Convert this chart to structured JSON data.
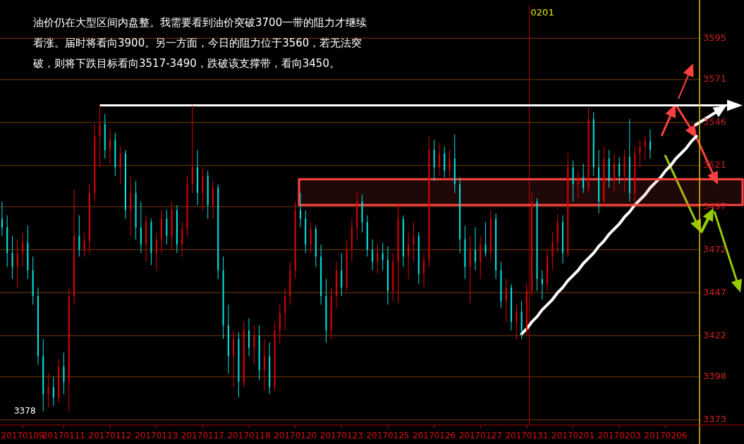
{
  "chart_data": {
    "type": "candlestick",
    "categories": [
      null,
      null,
      null,
      null,
      "20170109",
      null,
      null,
      null,
      null,
      null,
      null,
      null,
      "20170111",
      null,
      null,
      null,
      null,
      null,
      null,
      null,
      null,
      "20170112",
      null,
      null,
      null,
      null,
      null,
      null,
      null,
      null,
      "20170113",
      null,
      null,
      null,
      null,
      null,
      null,
      null,
      null,
      "20170117",
      null,
      null,
      null,
      null,
      null,
      null,
      null,
      null,
      "20170118",
      null,
      null,
      null,
      null,
      null,
      null,
      null,
      null,
      "20170120",
      null,
      null,
      null,
      null,
      null,
      null,
      null,
      null,
      "20170123",
      null,
      null,
      null,
      null,
      null,
      null,
      null,
      null,
      "20170125",
      null,
      null,
      null,
      null,
      null,
      null,
      null,
      null,
      "20170126",
      null,
      null,
      null,
      null,
      null,
      null,
      null,
      null,
      "20170127",
      null,
      null,
      null,
      null,
      null,
      null,
      null,
      null,
      "20170131",
      null,
      null,
      null,
      null,
      null,
      null,
      null,
      null,
      "20170201",
      null,
      null,
      null,
      null,
      null,
      null,
      null,
      null,
      "20170203",
      null,
      null,
      null,
      null,
      null,
      null,
      null,
      null,
      "20170206",
      null,
      null,
      null,
      null,
      null,
      null
    ],
    "ohlc": [
      [
        3490,
        3500,
        3480,
        3485
      ],
      [
        3485,
        3492,
        3462,
        3470
      ],
      [
        3470,
        3480,
        3455,
        3462
      ],
      [
        3462,
        3478,
        3450,
        3470
      ],
      [
        3470,
        3482,
        3462,
        3476
      ],
      [
        3476,
        3486,
        3455,
        3460
      ],
      [
        3460,
        3468,
        3440,
        3445
      ],
      [
        3445,
        3450,
        3405,
        3410
      ],
      [
        3410,
        3420,
        3378,
        3388
      ],
      [
        3388,
        3400,
        3380,
        3392
      ],
      [
        3392,
        3398,
        3381,
        3386
      ],
      [
        3386,
        3408,
        3383,
        3404
      ],
      [
        3404,
        3412,
        3388,
        3395
      ],
      [
        3395,
        3450,
        3378,
        3445
      ],
      [
        3445,
        3507,
        3440,
        3480
      ],
      [
        3480,
        3492,
        3468,
        3472
      ],
      [
        3472,
        3482,
        3468,
        3477
      ],
      [
        3477,
        3510,
        3470,
        3505
      ],
      [
        3505,
        3545,
        3500,
        3538
      ],
      [
        3538,
        3556,
        3520,
        3545
      ],
      [
        3545,
        3551,
        3525,
        3530
      ],
      [
        3530,
        3542,
        3522,
        3536
      ],
      [
        3536,
        3540,
        3515,
        3520
      ],
      [
        3520,
        3532,
        3510,
        3528
      ],
      [
        3528,
        3530,
        3490,
        3495
      ],
      [
        3495,
        3515,
        3480,
        3505
      ],
      [
        3505,
        3512,
        3478,
        3485
      ],
      [
        3485,
        3500,
        3470,
        3475
      ],
      [
        3475,
        3492,
        3465,
        3488
      ],
      [
        3488,
        3490,
        3463,
        3470
      ],
      [
        3470,
        3482,
        3460,
        3478
      ],
      [
        3478,
        3495,
        3470,
        3490
      ],
      [
        3490,
        3495,
        3475,
        3480
      ],
      [
        3480,
        3500,
        3472,
        3495
      ],
      [
        3495,
        3498,
        3470,
        3475
      ],
      [
        3475,
        3488,
        3468,
        3484
      ],
      [
        3484,
        3515,
        3480,
        3510
      ],
      [
        3510,
        3556,
        3505,
        3520
      ],
      [
        3520,
        3530,
        3498,
        3505
      ],
      [
        3505,
        3520,
        3495,
        3515
      ],
      [
        3515,
        3518,
        3490,
        3498
      ],
      [
        3498,
        3512,
        3490,
        3508
      ],
      [
        3508,
        3510,
        3455,
        3460
      ],
      [
        3460,
        3468,
        3420,
        3428
      ],
      [
        3428,
        3440,
        3400,
        3410
      ],
      [
        3410,
        3425,
        3392,
        3420
      ],
      [
        3420,
        3424,
        3386,
        3395
      ],
      [
        3395,
        3430,
        3392,
        3425
      ],
      [
        3425,
        3432,
        3410,
        3415
      ],
      [
        3415,
        3428,
        3405,
        3422
      ],
      [
        3422,
        3428,
        3396,
        3402
      ],
      [
        3402,
        3420,
        3390,
        3410
      ],
      [
        3410,
        3418,
        3388,
        3392
      ],
      [
        3392,
        3430,
        3390,
        3425
      ],
      [
        3425,
        3440,
        3418,
        3435
      ],
      [
        3435,
        3450,
        3425,
        3445
      ],
      [
        3445,
        3465,
        3440,
        3460
      ],
      [
        3460,
        3500,
        3455,
        3495
      ],
      [
        3495,
        3505,
        3485,
        3490
      ],
      [
        3490,
        3495,
        3470,
        3475
      ],
      [
        3475,
        3488,
        3470,
        3484
      ],
      [
        3484,
        3486,
        3462,
        3468
      ],
      [
        3468,
        3475,
        3440,
        3445
      ],
      [
        3445,
        3455,
        3418,
        3425
      ],
      [
        3425,
        3450,
        3420,
        3445
      ],
      [
        3445,
        3465,
        3438,
        3460
      ],
      [
        3460,
        3470,
        3445,
        3450
      ],
      [
        3450,
        3478,
        3448,
        3472
      ],
      [
        3472,
        3490,
        3465,
        3485
      ],
      [
        3485,
        3505,
        3478,
        3500
      ],
      [
        3500,
        3504,
        3482,
        3488
      ],
      [
        3488,
        3492,
        3468,
        3472
      ],
      [
        3472,
        3478,
        3460,
        3465
      ],
      [
        3465,
        3475,
        3458,
        3470
      ],
      [
        3470,
        3476,
        3460,
        3466
      ],
      [
        3466,
        3474,
        3440,
        3448
      ],
      [
        3448,
        3470,
        3442,
        3465
      ],
      [
        3465,
        3499,
        3441,
        3490
      ],
      [
        3490,
        3492,
        3462,
        3468
      ],
      [
        3468,
        3482,
        3455,
        3475
      ],
      [
        3475,
        3488,
        3465,
        3480
      ],
      [
        3480,
        3482,
        3452,
        3458
      ],
      [
        3458,
        3470,
        3450,
        3466
      ],
      [
        3466,
        3538,
        3462,
        3530
      ],
      [
        3530,
        3536,
        3512,
        3520
      ],
      [
        3520,
        3534,
        3515,
        3528
      ],
      [
        3528,
        3532,
        3514,
        3518
      ],
      [
        3518,
        3530,
        3512,
        3525
      ],
      [
        3525,
        3539,
        3505,
        3510
      ],
      [
        3510,
        3514,
        3470,
        3478
      ],
      [
        3478,
        3486,
        3455,
        3462
      ],
      [
        3462,
        3480,
        3441,
        3472
      ],
      [
        3472,
        3485,
        3460,
        3465
      ],
      [
        3465,
        3480,
        3455,
        3475
      ],
      [
        3475,
        3488,
        3468,
        3470
      ],
      [
        3470,
        3495,
        3465,
        3490
      ],
      [
        3490,
        3493,
        3455,
        3460
      ],
      [
        3460,
        3465,
        3438,
        3442
      ],
      [
        3442,
        3455,
        3430,
        3450
      ],
      [
        3450,
        3452,
        3425,
        3430
      ],
      [
        3430,
        3440,
        3420,
        3436
      ],
      [
        3436,
        3442,
        3420,
        3425
      ],
      [
        3425,
        3452,
        3422,
        3448
      ],
      [
        3448,
        3505,
        3445,
        3500
      ],
      [
        3500,
        3502,
        3448,
        3455
      ],
      [
        3455,
        3460,
        3443,
        3452
      ],
      [
        3452,
        3472,
        3448,
        3468
      ],
      [
        3468,
        3482,
        3460,
        3476
      ],
      [
        3476,
        3493,
        3470,
        3488
      ],
      [
        3488,
        3492,
        3464,
        3470
      ],
      [
        3470,
        3528,
        3468,
        3520
      ],
      [
        3520,
        3524,
        3500,
        3510
      ],
      [
        3510,
        3518,
        3502,
        3514
      ],
      [
        3514,
        3522,
        3505,
        3508
      ],
      [
        3508,
        3555,
        3505,
        3548
      ],
      [
        3548,
        3552,
        3515,
        3520
      ],
      [
        3520,
        3530,
        3493,
        3500
      ],
      [
        3500,
        3532,
        3498,
        3525
      ],
      [
        3525,
        3530,
        3508,
        3512
      ],
      [
        3512,
        3528,
        3506,
        3522
      ],
      [
        3522,
        3526,
        3510,
        3515
      ],
      [
        3515,
        3530,
        3506,
        3526
      ],
      [
        3526,
        3548,
        3500,
        3505
      ],
      [
        3505,
        3532,
        3500,
        3528
      ],
      [
        3528,
        3536,
        3520,
        3532
      ],
      [
        3532,
        3538,
        3524,
        3535
      ],
      [
        3535,
        3542,
        3525,
        3530
      ],
      null,
      null,
      null,
      null,
      null,
      null,
      null,
      null,
      null
    ],
    "series": [
      {
        "type": "line",
        "color": "#ffffff",
        "values": [
          null,
          null,
          null,
          null,
          null,
          null,
          null,
          null,
          null,
          null,
          null,
          null,
          null,
          null,
          null,
          null,
          null,
          null,
          null,
          null,
          null,
          null,
          null,
          null,
          null,
          null,
          null,
          null,
          null,
          null,
          null,
          null,
          null,
          null,
          null,
          null,
          null,
          null,
          null,
          null,
          null,
          null,
          null,
          null,
          null,
          null,
          null,
          null,
          null,
          null,
          null,
          null,
          null,
          null,
          null,
          null,
          null,
          null,
          null,
          null,
          null,
          null,
          null,
          null,
          null,
          null,
          null,
          null,
          null,
          null,
          null,
          null,
          null,
          null,
          null,
          null,
          null,
          null,
          null,
          null,
          null,
          null,
          null,
          null,
          null,
          null,
          null,
          null,
          null,
          null,
          null,
          null,
          null,
          null,
          null,
          null,
          null,
          null,
          null,
          null,
          null,
          3423,
          3426,
          3430,
          3433,
          3437,
          3440,
          3443,
          3447,
          3450,
          3454,
          3457,
          3460,
          3464,
          3467,
          3470,
          3474,
          3477,
          3481,
          3484,
          3487,
          3491,
          3494,
          3498,
          3501,
          3504,
          3508,
          3511,
          3514,
          3518,
          3521,
          3525,
          3528,
          3531,
          3535,
          3538
        ]
      }
    ],
    "ylim": [
      3370,
      3614
    ],
    "yticks": [
      3373,
      3398,
      3422,
      3447,
      3472,
      3497,
      3521,
      3546,
      3571,
      3595
    ],
    "grid": "y",
    "ref_lines": [
      {
        "axis": "y",
        "value": 3556,
        "color": "#ffffff"
      },
      {
        "axis": "x",
        "value": "20170131",
        "label": "0201",
        "color": "#b00000"
      }
    ],
    "bands": [
      {
        "axis": "y",
        "from": 3498,
        "to": 3513,
        "color": "#ff4444"
      }
    ],
    "annotations": [
      "油价仍在大型区间内盘整。我需要看到油价突破3700一带的阻力才继续看涨。届时将看向3900。另一方面，今日的阻力位于3560，若无法突破，则将下跌目标看向3517-3490，跌破该支撑带，看向3450。",
      "3378"
    ]
  }
}
